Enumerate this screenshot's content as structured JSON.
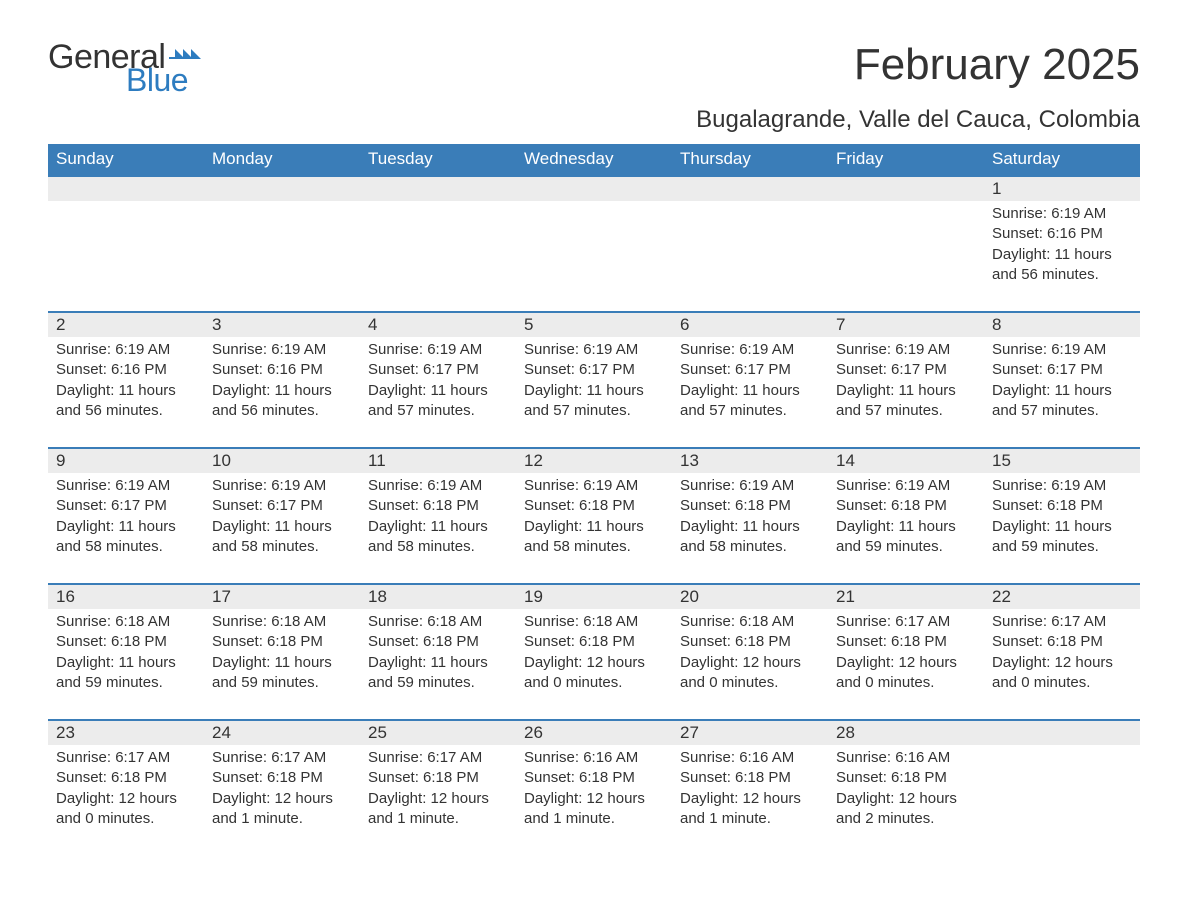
{
  "logo": {
    "word1": "General",
    "word2": "Blue"
  },
  "title": "February 2025",
  "location": "Bugalagrande, Valle del Cauca, Colombia",
  "colors": {
    "header_bg": "#3a7db8",
    "header_text": "#ffffff",
    "daynum_bg": "#ececec",
    "text": "#333333",
    "accent": "#2d7cc0",
    "page_bg": "#ffffff"
  },
  "dow": [
    "Sunday",
    "Monday",
    "Tuesday",
    "Wednesday",
    "Thursday",
    "Friday",
    "Saturday"
  ],
  "weeks": [
    [
      null,
      null,
      null,
      null,
      null,
      null,
      {
        "n": "1",
        "sr": "Sunrise: 6:19 AM",
        "ss": "Sunset: 6:16 PM",
        "dl": "Daylight: 11 hours and 56 minutes."
      }
    ],
    [
      {
        "n": "2",
        "sr": "Sunrise: 6:19 AM",
        "ss": "Sunset: 6:16 PM",
        "dl": "Daylight: 11 hours and 56 minutes."
      },
      {
        "n": "3",
        "sr": "Sunrise: 6:19 AM",
        "ss": "Sunset: 6:16 PM",
        "dl": "Daylight: 11 hours and 56 minutes."
      },
      {
        "n": "4",
        "sr": "Sunrise: 6:19 AM",
        "ss": "Sunset: 6:17 PM",
        "dl": "Daylight: 11 hours and 57 minutes."
      },
      {
        "n": "5",
        "sr": "Sunrise: 6:19 AM",
        "ss": "Sunset: 6:17 PM",
        "dl": "Daylight: 11 hours and 57 minutes."
      },
      {
        "n": "6",
        "sr": "Sunrise: 6:19 AM",
        "ss": "Sunset: 6:17 PM",
        "dl": "Daylight: 11 hours and 57 minutes."
      },
      {
        "n": "7",
        "sr": "Sunrise: 6:19 AM",
        "ss": "Sunset: 6:17 PM",
        "dl": "Daylight: 11 hours and 57 minutes."
      },
      {
        "n": "8",
        "sr": "Sunrise: 6:19 AM",
        "ss": "Sunset: 6:17 PM",
        "dl": "Daylight: 11 hours and 57 minutes."
      }
    ],
    [
      {
        "n": "9",
        "sr": "Sunrise: 6:19 AM",
        "ss": "Sunset: 6:17 PM",
        "dl": "Daylight: 11 hours and 58 minutes."
      },
      {
        "n": "10",
        "sr": "Sunrise: 6:19 AM",
        "ss": "Sunset: 6:17 PM",
        "dl": "Daylight: 11 hours and 58 minutes."
      },
      {
        "n": "11",
        "sr": "Sunrise: 6:19 AM",
        "ss": "Sunset: 6:18 PM",
        "dl": "Daylight: 11 hours and 58 minutes."
      },
      {
        "n": "12",
        "sr": "Sunrise: 6:19 AM",
        "ss": "Sunset: 6:18 PM",
        "dl": "Daylight: 11 hours and 58 minutes."
      },
      {
        "n": "13",
        "sr": "Sunrise: 6:19 AM",
        "ss": "Sunset: 6:18 PM",
        "dl": "Daylight: 11 hours and 58 minutes."
      },
      {
        "n": "14",
        "sr": "Sunrise: 6:19 AM",
        "ss": "Sunset: 6:18 PM",
        "dl": "Daylight: 11 hours and 59 minutes."
      },
      {
        "n": "15",
        "sr": "Sunrise: 6:19 AM",
        "ss": "Sunset: 6:18 PM",
        "dl": "Daylight: 11 hours and 59 minutes."
      }
    ],
    [
      {
        "n": "16",
        "sr": "Sunrise: 6:18 AM",
        "ss": "Sunset: 6:18 PM",
        "dl": "Daylight: 11 hours and 59 minutes."
      },
      {
        "n": "17",
        "sr": "Sunrise: 6:18 AM",
        "ss": "Sunset: 6:18 PM",
        "dl": "Daylight: 11 hours and 59 minutes."
      },
      {
        "n": "18",
        "sr": "Sunrise: 6:18 AM",
        "ss": "Sunset: 6:18 PM",
        "dl": "Daylight: 11 hours and 59 minutes."
      },
      {
        "n": "19",
        "sr": "Sunrise: 6:18 AM",
        "ss": "Sunset: 6:18 PM",
        "dl": "Daylight: 12 hours and 0 minutes."
      },
      {
        "n": "20",
        "sr": "Sunrise: 6:18 AM",
        "ss": "Sunset: 6:18 PM",
        "dl": "Daylight: 12 hours and 0 minutes."
      },
      {
        "n": "21",
        "sr": "Sunrise: 6:17 AM",
        "ss": "Sunset: 6:18 PM",
        "dl": "Daylight: 12 hours and 0 minutes."
      },
      {
        "n": "22",
        "sr": "Sunrise: 6:17 AM",
        "ss": "Sunset: 6:18 PM",
        "dl": "Daylight: 12 hours and 0 minutes."
      }
    ],
    [
      {
        "n": "23",
        "sr": "Sunrise: 6:17 AM",
        "ss": "Sunset: 6:18 PM",
        "dl": "Daylight: 12 hours and 0 minutes."
      },
      {
        "n": "24",
        "sr": "Sunrise: 6:17 AM",
        "ss": "Sunset: 6:18 PM",
        "dl": "Daylight: 12 hours and 1 minute."
      },
      {
        "n": "25",
        "sr": "Sunrise: 6:17 AM",
        "ss": "Sunset: 6:18 PM",
        "dl": "Daylight: 12 hours and 1 minute."
      },
      {
        "n": "26",
        "sr": "Sunrise: 6:16 AM",
        "ss": "Sunset: 6:18 PM",
        "dl": "Daylight: 12 hours and 1 minute."
      },
      {
        "n": "27",
        "sr": "Sunrise: 6:16 AM",
        "ss": "Sunset: 6:18 PM",
        "dl": "Daylight: 12 hours and 1 minute."
      },
      {
        "n": "28",
        "sr": "Sunrise: 6:16 AM",
        "ss": "Sunset: 6:18 PM",
        "dl": "Daylight: 12 hours and 2 minutes."
      },
      null
    ]
  ]
}
